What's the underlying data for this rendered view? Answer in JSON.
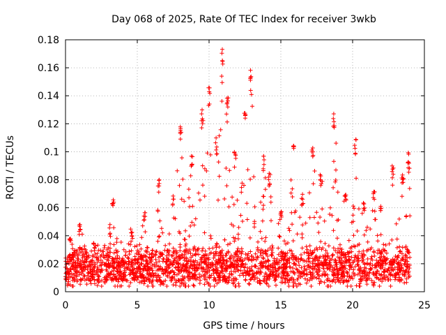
{
  "chart_data": {
    "type": "scatter",
    "title": "Day 068 of 2025, Rate Of TEC Index for receiver 3wkb",
    "xlabel": "GPS time / hours",
    "ylabel": "ROTI / TECUs",
    "xlim": [
      0,
      25
    ],
    "ylim": [
      0,
      0.18
    ],
    "x_ticks": [
      0,
      5,
      10,
      15,
      20,
      25
    ],
    "x_tick_labels": [
      "0",
      "5",
      "10",
      "15",
      "20",
      "25"
    ],
    "y_ticks": [
      0,
      0.02,
      0.04,
      0.06,
      0.08,
      0.1,
      0.12,
      0.14,
      0.16,
      0.18
    ],
    "y_tick_labels": [
      "0",
      "0.02",
      "0.04",
      "0.06",
      "0.08",
      "0.1",
      "0.12",
      "0.14",
      "0.16",
      "0.18"
    ],
    "grid": true,
    "marker": "+",
    "marker_color": "#ff0000",
    "series": [
      {
        "name": "ROTI",
        "x_range": [
          0,
          24
        ],
        "baseline_median": 0.018,
        "peaks": [
          {
            "x": 0.3,
            "y": 0.04
          },
          {
            "x": 1.0,
            "y": 0.049
          },
          {
            "x": 2.0,
            "y": 0.035
          },
          {
            "x": 3.3,
            "y": 0.068
          },
          {
            "x": 4.6,
            "y": 0.045
          },
          {
            "x": 5.5,
            "y": 0.058
          },
          {
            "x": 6.5,
            "y": 0.08
          },
          {
            "x": 7.5,
            "y": 0.07
          },
          {
            "x": 8.0,
            "y": 0.12
          },
          {
            "x": 8.8,
            "y": 0.1
          },
          {
            "x": 9.5,
            "y": 0.133
          },
          {
            "x": 10.0,
            "y": 0.149
          },
          {
            "x": 10.5,
            "y": 0.11
          },
          {
            "x": 10.9,
            "y": 0.174
          },
          {
            "x": 11.3,
            "y": 0.145
          },
          {
            "x": 11.8,
            "y": 0.1
          },
          {
            "x": 12.5,
            "y": 0.13
          },
          {
            "x": 12.9,
            "y": 0.16
          },
          {
            "x": 13.8,
            "y": 0.098
          },
          {
            "x": 14.2,
            "y": 0.085
          },
          {
            "x": 15.0,
            "y": 0.06
          },
          {
            "x": 15.9,
            "y": 0.106
          },
          {
            "x": 16.5,
            "y": 0.07
          },
          {
            "x": 17.2,
            "y": 0.103
          },
          {
            "x": 17.8,
            "y": 0.085
          },
          {
            "x": 18.7,
            "y": 0.13
          },
          {
            "x": 19.5,
            "y": 0.07
          },
          {
            "x": 20.2,
            "y": 0.11
          },
          {
            "x": 20.8,
            "y": 0.065
          },
          {
            "x": 21.5,
            "y": 0.075
          },
          {
            "x": 22.0,
            "y": 0.065
          },
          {
            "x": 22.8,
            "y": 0.092
          },
          {
            "x": 23.5,
            "y": 0.085
          },
          {
            "x": 23.9,
            "y": 0.1
          }
        ]
      }
    ]
  }
}
